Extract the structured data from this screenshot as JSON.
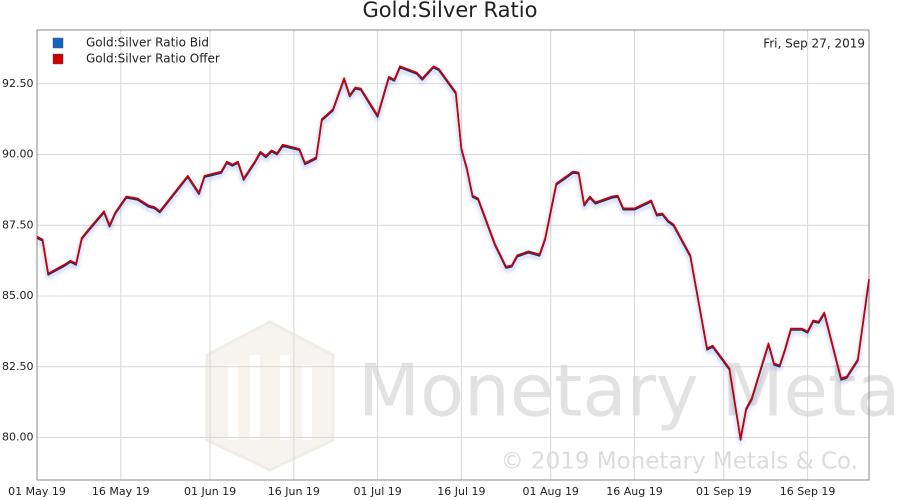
{
  "chart_data": {
    "type": "line",
    "title": "Gold:Silver Ratio",
    "date_label": "Fri, Sep 27, 2019",
    "watermark": "Monetary Metals",
    "copyright": "© 2019 Monetary Metals & Co.",
    "x": [
      "2019-05-01",
      "2019-05-02",
      "2019-05-03",
      "2019-05-06",
      "2019-05-07",
      "2019-05-08",
      "2019-05-09",
      "2019-05-10",
      "2019-05-13",
      "2019-05-14",
      "2019-05-15",
      "2019-05-17",
      "2019-05-19",
      "2019-05-21",
      "2019-05-22",
      "2019-05-23",
      "2019-05-25",
      "2019-05-28",
      "2019-05-30",
      "2019-05-31",
      "2019-06-03",
      "2019-06-04",
      "2019-06-05",
      "2019-06-06",
      "2019-06-07",
      "2019-06-09",
      "2019-06-10",
      "2019-06-11",
      "2019-06-12",
      "2019-06-13",
      "2019-06-14",
      "2019-06-17",
      "2019-06-18",
      "2019-06-20",
      "2019-06-21",
      "2019-06-23",
      "2019-06-25",
      "2019-06-26",
      "2019-06-27",
      "2019-06-28",
      "2019-07-01",
      "2019-07-03",
      "2019-07-04",
      "2019-07-05",
      "2019-07-08",
      "2019-07-09",
      "2019-07-11",
      "2019-07-12",
      "2019-07-15",
      "2019-07-16",
      "2019-07-17",
      "2019-07-18",
      "2019-07-19",
      "2019-07-22",
      "2019-07-24",
      "2019-07-25",
      "2019-07-26",
      "2019-07-28",
      "2019-07-30",
      "2019-07-31",
      "2019-08-02",
      "2019-08-05",
      "2019-08-06",
      "2019-08-07",
      "2019-08-08",
      "2019-08-09",
      "2019-08-12",
      "2019-08-13",
      "2019-08-14",
      "2019-08-16",
      "2019-08-19",
      "2019-08-20",
      "2019-08-21",
      "2019-08-22",
      "2019-08-23",
      "2019-08-26",
      "2019-08-29",
      "2019-08-30",
      "2019-09-02",
      "2019-09-04",
      "2019-09-05",
      "2019-09-06",
      "2019-09-09",
      "2019-09-10",
      "2019-09-11",
      "2019-09-12",
      "2019-09-13",
      "2019-09-15",
      "2019-09-16",
      "2019-09-17",
      "2019-09-18",
      "2019-09-19",
      "2019-09-22",
      "2019-09-23",
      "2019-09-25",
      "2019-09-27"
    ],
    "series": [
      {
        "name": "Gold:Silver Ratio Bid",
        "color": "#1565c0",
        "line_color": "#1a2a6c",
        "values": [
          87.05,
          86.95,
          85.75,
          86.07,
          86.2,
          86.1,
          87.0,
          87.25,
          87.95,
          87.45,
          87.9,
          88.47,
          88.4,
          88.15,
          88.1,
          87.95,
          88.45,
          89.2,
          88.6,
          89.2,
          89.35,
          89.7,
          89.6,
          89.7,
          89.1,
          89.7,
          90.05,
          89.9,
          90.1,
          90.0,
          90.3,
          90.15,
          89.65,
          89.85,
          91.2,
          91.55,
          92.65,
          92.05,
          92.32,
          92.28,
          91.33,
          92.7,
          92.6,
          93.07,
          92.85,
          92.64,
          93.07,
          92.97,
          92.15,
          90.17,
          89.46,
          88.5,
          88.4,
          86.8,
          85.99,
          86.03,
          86.39,
          86.53,
          86.42,
          86.99,
          88.93,
          89.35,
          89.32,
          88.19,
          88.47,
          88.26,
          88.47,
          88.5,
          88.05,
          88.05,
          88.33,
          87.84,
          87.87,
          87.62,
          87.48,
          86.39,
          83.1,
          83.2,
          82.4,
          79.92,
          80.98,
          81.34,
          83.28,
          82.57,
          82.5,
          83.1,
          83.8,
          83.8,
          83.7,
          84.09,
          84.05,
          84.37,
          82.04,
          82.1,
          82.71,
          85.55
        ]
      },
      {
        "name": "Gold:Silver Ratio Offer",
        "color": "#cc0000",
        "line_color": "#cc0000",
        "values": [
          87.1,
          87.0,
          85.8,
          86.12,
          86.25,
          86.15,
          87.05,
          87.3,
          88.0,
          87.5,
          87.95,
          88.52,
          88.45,
          88.2,
          88.15,
          88.0,
          88.5,
          89.25,
          88.65,
          89.25,
          89.4,
          89.75,
          89.65,
          89.75,
          89.15,
          89.75,
          90.1,
          89.95,
          90.15,
          90.05,
          90.35,
          90.2,
          89.7,
          89.9,
          91.25,
          91.6,
          92.7,
          92.1,
          92.37,
          92.33,
          91.38,
          92.75,
          92.65,
          93.12,
          92.9,
          92.69,
          93.12,
          93.02,
          92.2,
          90.22,
          89.51,
          88.55,
          88.45,
          86.85,
          86.04,
          86.08,
          86.44,
          86.58,
          86.47,
          87.04,
          88.98,
          89.4,
          89.37,
          88.24,
          88.52,
          88.31,
          88.52,
          88.55,
          88.1,
          88.1,
          88.38,
          87.89,
          87.92,
          87.67,
          87.53,
          86.44,
          83.15,
          83.25,
          82.45,
          79.97,
          81.03,
          81.39,
          83.33,
          82.62,
          82.55,
          83.15,
          83.85,
          83.85,
          83.75,
          84.14,
          84.1,
          84.42,
          82.09,
          82.15,
          82.76,
          85.6
        ]
      }
    ],
    "xlim": [
      "2019-05-01",
      "2019-09-27"
    ],
    "xticks": [
      {
        "value": "2019-05-01",
        "label": "01 May 19"
      },
      {
        "value": "2019-05-16",
        "label": "16 May 19"
      },
      {
        "value": "2019-06-01",
        "label": "01 Jun 19"
      },
      {
        "value": "2019-06-16",
        "label": "16 Jun 19"
      },
      {
        "value": "2019-07-01",
        "label": "01 Jul 19"
      },
      {
        "value": "2019-07-16",
        "label": "16 Jul 19"
      },
      {
        "value": "2019-08-01",
        "label": "01 Aug 19"
      },
      {
        "value": "2019-08-16",
        "label": "16 Aug 19"
      },
      {
        "value": "2019-09-01",
        "label": "01 Sep 19"
      },
      {
        "value": "2019-09-16",
        "label": "16 Sep 19"
      }
    ],
    "ylim": [
      78.5,
      94.4
    ],
    "yticks": [
      {
        "value": 80,
        "label": "80.00"
      },
      {
        "value": 82.5,
        "label": "82.50"
      },
      {
        "value": 85,
        "label": "85.00"
      },
      {
        "value": 87.5,
        "label": "87.50"
      },
      {
        "value": 90,
        "label": "90.00"
      },
      {
        "value": 92.5,
        "label": "92.50"
      }
    ],
    "grid": true,
    "legend": "top-left"
  }
}
